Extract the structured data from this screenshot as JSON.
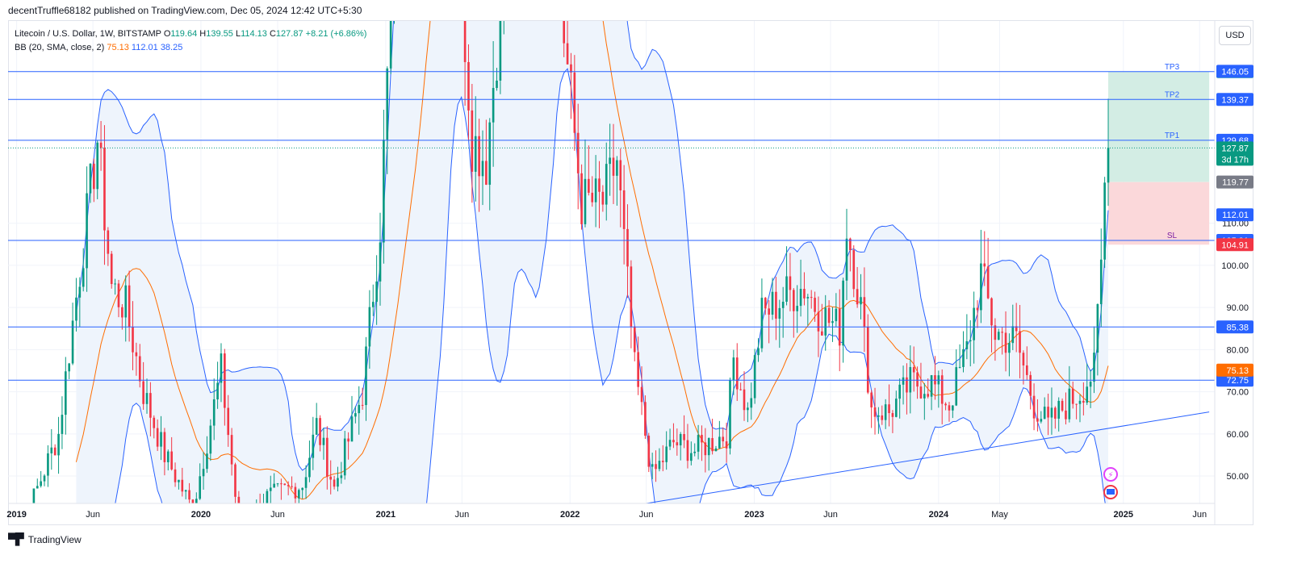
{
  "header": {
    "published": "decentTruffle68182 published on TradingView.com, Dec 05, 2024 12:42 UTC+5:30"
  },
  "legend": {
    "symbol": "Litecoin / U.S. Dollar, 1W, BITSTAMP",
    "o_label": "O",
    "o_value": "119.64",
    "h_label": "H",
    "h_value": "139.55",
    "l_label": "L",
    "l_value": "114.13",
    "c_label": "C",
    "c_value": "127.87",
    "change": "+8.21 (+6.86%)",
    "bb_label": "BB (20, SMA, close, 2)",
    "bb_basis": "75.13",
    "bb_upper": "112.01",
    "bb_lower": "38.25"
  },
  "currency_button": "USD",
  "footer": {
    "brand": "TradingView"
  },
  "colors": {
    "up": "#089981",
    "down": "#f23645",
    "basis": "#ff6d00",
    "band": "#2962ff",
    "band_fill": "#eef4fc",
    "hline": "#2962ff",
    "tp_zone": "#d3ede4",
    "sl_zone": "#fbd8da"
  },
  "chart_data": {
    "type": "candlestick",
    "title": "Litecoin / U.S. Dollar, 1W, BITSTAMP",
    "ylim": [
      43.5,
      158
    ],
    "y_ticks": [
      50,
      60,
      70,
      80,
      90,
      100,
      110
    ],
    "x_ticks": [
      {
        "label": "2019",
        "date": "2019-01-01"
      },
      {
        "label": "Jun",
        "date": "2019-06-01"
      },
      {
        "label": "2020",
        "date": "2020-01-01"
      },
      {
        "label": "Jun",
        "date": "2020-06-01"
      },
      {
        "label": "2021",
        "date": "2021-01-01"
      },
      {
        "label": "Jun",
        "date": "2021-06-01"
      },
      {
        "label": "2022",
        "date": "2022-01-01"
      },
      {
        "label": "Jun",
        "date": "2022-06-01"
      },
      {
        "label": "2023",
        "date": "2023-01-01"
      },
      {
        "label": "Jun",
        "date": "2023-06-01"
      },
      {
        "label": "2024",
        "date": "2024-01-01"
      },
      {
        "label": "May",
        "date": "2024-05-01"
      },
      {
        "label": "2025",
        "date": "2025-01-01"
      },
      {
        "label": "Jun",
        "date": "2025-06-01"
      }
    ],
    "x_range": [
      "2018-12-15",
      "2025-07-01"
    ],
    "horizontal_lines": [
      {
        "value": 145.98,
        "label": "145.98",
        "tag": "TP3",
        "tag_bg": "#089981"
      },
      {
        "value": 139.37,
        "label": "139.37",
        "tag": "TP2",
        "tag_bg": "#2962ff"
      },
      {
        "value": 129.68,
        "label": "129.68",
        "tag": "TP1",
        "tag_bg": "#2962ff"
      },
      {
        "value": 105.91,
        "label": "105.91",
        "tag": "SL",
        "tag_bg": "#2962ff"
      },
      {
        "value": 85.38,
        "label": "85.38",
        "tag": "",
        "tag_bg": "#2962ff"
      },
      {
        "value": 72.75,
        "label": "72.75",
        "tag": "",
        "tag_bg": "#2962ff"
      }
    ],
    "price_labels": [
      {
        "value": 146.05,
        "label": "146.05",
        "bg": "#2962ff"
      },
      {
        "value": 127.87,
        "label": "127.87",
        "sub": "3d 17h",
        "bg": "#089981"
      },
      {
        "value": 119.77,
        "label": "119.77",
        "bg": "#787b86"
      },
      {
        "value": 112.01,
        "label": "112.01",
        "bg": "#2962ff"
      },
      {
        "value": 104.91,
        "label": "104.91",
        "bg": "#f23645"
      },
      {
        "value": 75.13,
        "label": "75.13",
        "bg": "#ff6d00"
      }
    ],
    "position": {
      "start": "2024-12-02",
      "end": "2025-06-20",
      "entry": 119.77,
      "target": 145.98,
      "stop": 104.91
    },
    "trendline": {
      "x1": "2022-06-01",
      "y1": 43.5,
      "x2": "2025-06-20",
      "y2": 65.2
    },
    "series": {
      "close_anchors": [
        [
          "2018-12-17",
          30
        ],
        [
          "2019-02-04",
          45
        ],
        [
          "2019-03-25",
          60
        ],
        [
          "2019-04-15",
          80
        ],
        [
          "2019-05-13",
          105
        ],
        [
          "2019-06-10",
          130
        ],
        [
          "2019-07-08",
          95
        ],
        [
          "2019-08-05",
          90
        ],
        [
          "2019-09-09",
          70
        ],
        [
          "2019-10-21",
          55
        ],
        [
          "2019-12-16",
          42
        ],
        [
          "2020-02-10",
          75
        ],
        [
          "2020-03-16",
          38
        ],
        [
          "2020-05-11",
          45
        ],
        [
          "2020-07-20",
          48
        ],
        [
          "2020-08-17",
          62
        ],
        [
          "2020-09-21",
          47
        ],
        [
          "2020-11-16",
          70
        ],
        [
          "2020-12-21",
          110
        ],
        [
          "2021-01-11",
          160
        ],
        [
          "2021-02-22",
          190
        ],
        [
          "2021-04-19",
          280
        ],
        [
          "2021-05-24",
          180
        ],
        [
          "2021-06-21",
          130
        ],
        [
          "2021-07-19",
          125
        ],
        [
          "2021-09-06",
          190
        ],
        [
          "2021-11-08",
          240
        ],
        [
          "2021-12-20",
          155
        ],
        [
          "2022-01-24",
          115
        ],
        [
          "2022-03-07",
          115
        ],
        [
          "2022-04-04",
          125
        ],
        [
          "2022-05-09",
          75
        ],
        [
          "2022-06-13",
          50
        ],
        [
          "2022-07-25",
          58
        ],
        [
          "2022-09-05",
          56
        ],
        [
          "2022-11-07",
          60
        ],
        [
          "2022-11-21",
          78
        ],
        [
          "2022-12-19",
          65
        ],
        [
          "2023-01-16",
          88
        ],
        [
          "2023-03-06",
          93
        ],
        [
          "2023-04-10",
          95
        ],
        [
          "2023-05-15",
          88
        ],
        [
          "2023-06-19",
          85
        ],
        [
          "2023-07-03",
          110
        ],
        [
          "2023-07-31",
          90
        ],
        [
          "2023-08-21",
          66
        ],
        [
          "2023-09-25",
          65
        ],
        [
          "2023-11-06",
          72
        ],
        [
          "2023-12-18",
          72
        ],
        [
          "2024-01-22",
          67
        ],
        [
          "2024-02-26",
          80
        ],
        [
          "2024-03-25",
          98
        ],
        [
          "2024-04-22",
          84
        ],
        [
          "2024-06-03",
          82
        ],
        [
          "2024-07-08",
          67
        ],
        [
          "2024-08-05",
          62
        ],
        [
          "2024-09-02",
          66
        ],
        [
          "2024-10-07",
          70
        ],
        [
          "2024-11-04",
          75
        ],
        [
          "2024-11-18",
          100
        ],
        [
          "2024-11-25",
          119.64
        ],
        [
          "2024-12-02",
          127.87
        ]
      ]
    }
  }
}
